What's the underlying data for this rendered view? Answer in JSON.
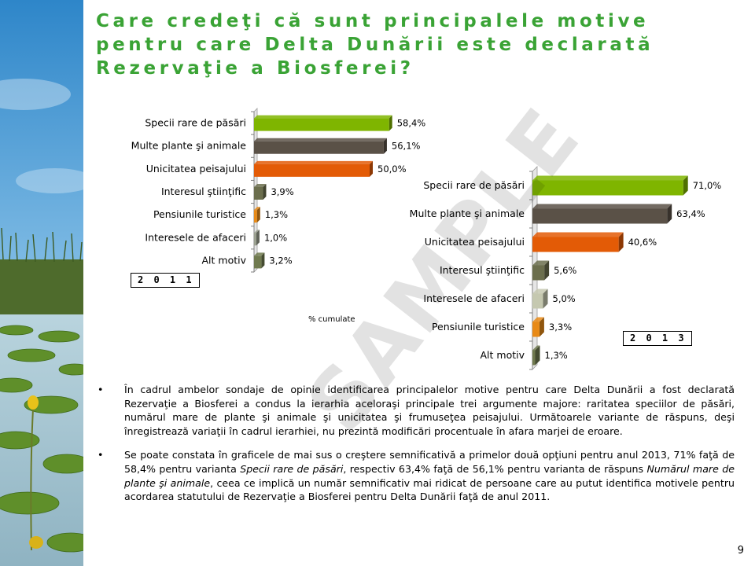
{
  "slide": {
    "title": "Care credeţi că sunt principalele motive pentru care Delta Dunării este declarată Rezervaţie a Biosferei?",
    "page_number": "9",
    "note": "% cumulate",
    "watermark": "SAMPLE",
    "bullet_symbol": "•",
    "bullets": [
      {
        "parts": [
          {
            "text": "În cadrul ambelor sondaje de opinie identificarea principalelor motive pentru care Delta Dunării a fost declarată Rezervaţie a Biosferei a condus la ierarhia aceloraşi principale trei argumente majore: raritatea speciilor de păsări, numărul mare de plante şi animale şi unicitatea şi frumuseţea peisajului. Următoarele variante de răspuns, deşi înregistrează variaţii în cadrul ierarhiei, nu prezintă modificări procentuale în afara marjei de eroare."
          }
        ]
      },
      {
        "parts": [
          {
            "text": "Se poate constata în graficele de mai sus o creştere semnificativă a primelor două opţiuni pentru anul 2013, 71% faţă de 58,4% pentru varianta "
          },
          {
            "text": "Specii rare de păsări",
            "italic": true
          },
          {
            "text": ", respectiv 63,4% faţă de 56,1% pentru varianta de răspuns "
          },
          {
            "text": "Numărul mare de plante şi animale",
            "italic": true
          },
          {
            "text": ", ceea ce implică un număr semnificativ mai ridicat de persoane care au putut identifica motivele pentru acordarea statutului de Rezervaţie a Biosferei pentru Delta Dunării faţă de anul 2011."
          }
        ]
      }
    ]
  },
  "chart_data": [
    {
      "type": "bar",
      "orientation": "horizontal",
      "year_label": "2 0 1 1",
      "xlim": [
        0,
        100
      ],
      "categories": [
        "Specii rare de păsări",
        "Multe plante şi animale",
        "Unicitatea peisajului",
        "Interesul ştiinţific",
        "Pensiunile turistice",
        "Interesele de afaceri",
        "Alt motiv"
      ],
      "values": [
        58.4,
        56.1,
        50.0,
        3.9,
        1.3,
        1.0,
        3.2
      ],
      "value_labels": [
        "58,4%",
        "56,1%",
        "50,0%",
        "3,9%",
        "1,3%",
        "1,0%",
        "3,2%"
      ],
      "colors": [
        "#7fb500",
        "#5a5147",
        "#e35b06",
        "#6b6e4d",
        "#e88a17",
        "#9ba090",
        "#707a4f"
      ]
    },
    {
      "type": "bar",
      "orientation": "horizontal",
      "year_label": "2 0 1 3",
      "xlim": [
        0,
        100
      ],
      "categories": [
        "Specii rare de păsări",
        "Multe plante şi animale",
        "Unicitatea peisajului",
        "Interesul ştiinţific",
        "Interesele de afaceri",
        "Pensiunile turistice",
        "Alt motiv"
      ],
      "values": [
        71.0,
        63.4,
        40.6,
        5.6,
        5.0,
        3.3,
        1.3
      ],
      "value_labels": [
        "71,0%",
        "63,4%",
        "40,6%",
        "5,6%",
        "5,0%",
        "3,3%",
        "1,3%"
      ],
      "colors": [
        "#7fb500",
        "#5a5147",
        "#e35b06",
        "#6b6e4d",
        "#c5c8b0",
        "#e88a17",
        "#707a4f"
      ]
    }
  ]
}
